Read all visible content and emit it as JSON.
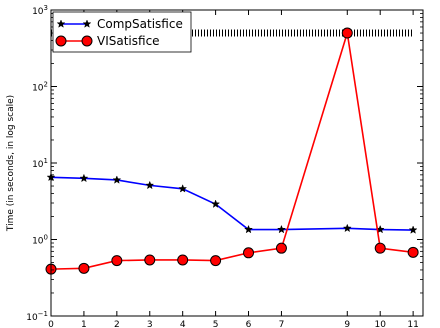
{
  "chart_data": {
    "type": "line",
    "title": "",
    "xlabel": "",
    "ylabel": "Time (in seconds, in log scale)",
    "yscale": "log",
    "xlim": [
      0,
      11.3
    ],
    "ylim": [
      0.1,
      1000
    ],
    "grid": false,
    "legend_position": "top-left",
    "x_ticks": [
      {
        "value": 0,
        "label": "0"
      },
      {
        "value": 1,
        "label": "1"
      },
      {
        "value": 2,
        "label": "2"
      },
      {
        "value": 3,
        "label": "3"
      },
      {
        "value": 4,
        "label": "4"
      },
      {
        "value": 5,
        "label": "5"
      },
      {
        "value": 6,
        "label": "6"
      },
      {
        "value": 7,
        "label": "7"
      },
      {
        "value": 9,
        "label": "9"
      },
      {
        "value": 10,
        "label": "10"
      },
      {
        "value": 11,
        "label": "11"
      }
    ],
    "y_ticks": [
      {
        "value": 0.1,
        "base": "10",
        "exp": "−1"
      },
      {
        "value": 1,
        "base": "10",
        "exp": "0"
      },
      {
        "value": 10,
        "base": "10",
        "exp": "1"
      },
      {
        "value": 100,
        "base": "10",
        "exp": "2"
      },
      {
        "value": 1000,
        "base": "10",
        "exp": "3"
      }
    ],
    "series": [
      {
        "name": "CompSatisfice",
        "color": "#0000ff",
        "marker": "star",
        "x": [
          0,
          1,
          2,
          3,
          4,
          5,
          6,
          7,
          9,
          10,
          11
        ],
        "y": [
          6.5,
          6.3,
          6.0,
          5.1,
          4.6,
          2.9,
          1.35,
          1.35,
          1.4,
          1.35,
          1.33
        ]
      },
      {
        "name": "VISatisfice",
        "color": "#ff0000",
        "marker": "circle",
        "x": [
          0,
          1,
          2,
          3,
          4,
          5,
          6,
          7,
          9,
          10,
          11
        ],
        "y": [
          0.41,
          0.42,
          0.53,
          0.54,
          0.54,
          0.53,
          0.67,
          0.77,
          500,
          0.77,
          0.68
        ]
      }
    ],
    "timeout": {
      "value": 500,
      "x_range": [
        0,
        11
      ],
      "style": "dense-dashed"
    }
  }
}
